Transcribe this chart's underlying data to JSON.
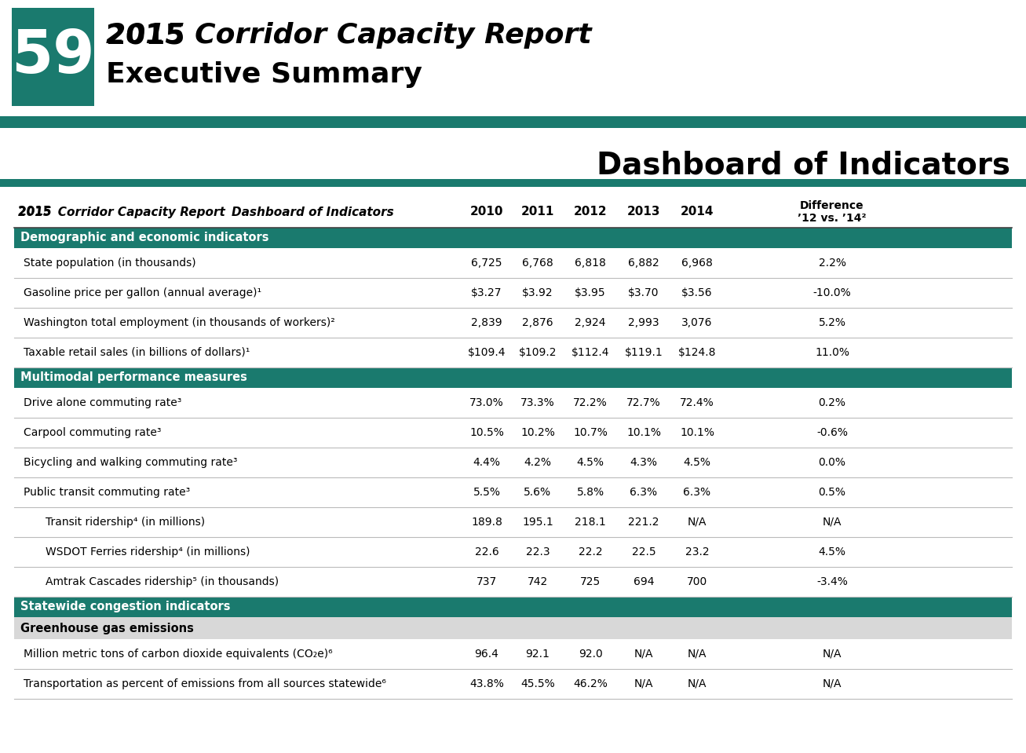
{
  "title_number": "59",
  "title_line1": "2015 Corridor Capacity Report",
  "title_line2": "Executive Summary",
  "dashboard_title": "Dashboard of Indicators",
  "table_title_plain": "2015 ",
  "table_title_italic": "Corridor Capacity Report",
  "table_title_rest": " Dashboard of Indicators",
  "col_headers_years": [
    "2010",
    "2011",
    "2012",
    "2013",
    "2014"
  ],
  "diff_header_line1": "Difference",
  "diff_header_line2": "’12 vs. ’14²",
  "rows": [
    {
      "label": "State population (in thousands)",
      "indent": 1,
      "values": [
        "6,725",
        "6,768",
        "6,818",
        "6,882",
        "6,968",
        "2.2%"
      ]
    },
    {
      "label": "Gasoline price per gallon (annual average)¹",
      "indent": 1,
      "values": [
        "$3.27",
        "$3.92",
        "$3.95",
        "$3.70",
        "$3.56",
        "-10.0%"
      ]
    },
    {
      "label": "Washington total employment (in thousands of workers)²",
      "indent": 1,
      "values": [
        "2,839",
        "2,876",
        "2,924",
        "2,993",
        "3,076",
        "5.2%"
      ]
    },
    {
      "label": "Taxable retail sales (in billions of dollars)¹",
      "indent": 1,
      "values": [
        "$109.4",
        "$109.2",
        "$112.4",
        "$119.1",
        "$124.8",
        "11.0%"
      ]
    },
    {
      "label": "Drive alone commuting rate³",
      "indent": 1,
      "values": [
        "73.0%",
        "73.3%",
        "72.2%",
        "72.7%",
        "72.4%",
        "0.2%"
      ]
    },
    {
      "label": "Carpool commuting rate³",
      "indent": 1,
      "values": [
        "10.5%",
        "10.2%",
        "10.7%",
        "10.1%",
        "10.1%",
        "-0.6%"
      ]
    },
    {
      "label": "Bicycling and walking commuting rate³",
      "indent": 1,
      "values": [
        "4.4%",
        "4.2%",
        "4.5%",
        "4.3%",
        "4.5%",
        "0.0%"
      ]
    },
    {
      "label": "Public transit commuting rate³",
      "indent": 1,
      "values": [
        "5.5%",
        "5.6%",
        "5.8%",
        "6.3%",
        "6.3%",
        "0.5%"
      ]
    },
    {
      "label": "Transit ridership⁴ (in millions)",
      "indent": 2,
      "values": [
        "189.8",
        "195.1",
        "218.1",
        "221.2",
        "N/A",
        "N/A"
      ]
    },
    {
      "label": "WSDOT Ferries ridership⁴ (in millions)",
      "indent": 2,
      "values": [
        "22.6",
        "22.3",
        "22.2",
        "22.5",
        "23.2",
        "4.5%"
      ]
    },
    {
      "label": "Amtrak Cascades ridership⁵ (in thousands)",
      "indent": 2,
      "values": [
        "737",
        "742",
        "725",
        "694",
        "700",
        "-3.4%"
      ]
    },
    {
      "label": "Million metric tons of carbon dioxide equivalents (CO₂e)⁶",
      "indent": 1,
      "values": [
        "96.4",
        "92.1",
        "92.0",
        "N/A",
        "N/A",
        "N/A"
      ]
    },
    {
      "label": "Transportation as percent of emissions from all sources statewide⁶",
      "indent": 1,
      "values": [
        "43.8%",
        "45.5%",
        "46.2%",
        "N/A",
        "N/A",
        "N/A"
      ]
    }
  ],
  "section_labels": [
    "Demographic and economic indicators",
    "Multimodal performance measures",
    "Statewide congestion indicators"
  ],
  "sub_section_label": "Greenhouse gas emissions",
  "colors": {
    "teal": "#1a7a6e",
    "white": "#ffffff",
    "black": "#000000",
    "light_gray": "#d8d8d8",
    "row_line": "#bbbbbb",
    "header_line": "#444444"
  }
}
